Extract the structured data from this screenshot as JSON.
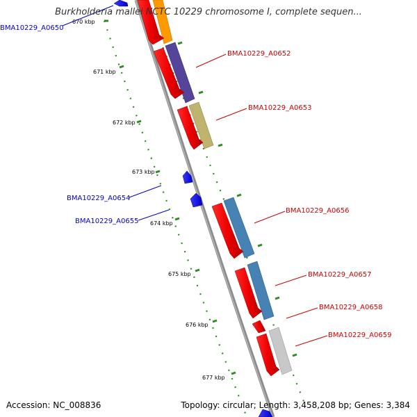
{
  "title": "Burkholderia mallei NCTC 10229 chromosome I, complete sequen...",
  "accession": "Accession: NC_008836",
  "summary": "Topology: circular; Length: 3,458,208 bp; Genes: 3,384",
  "ticks": [
    "670 kbp",
    "671 kbp",
    "672 kbp",
    "673 kbp",
    "674 kbp",
    "675 kbp",
    "676 kbp",
    "677 kbp"
  ],
  "genes": [
    {
      "label": "BMA10229_A0650",
      "color": "#0000cc"
    },
    {
      "label": "BMA10229_A0652",
      "color": "#cc0000"
    },
    {
      "label": "BMA10229_A0653",
      "color": "#cc0000"
    },
    {
      "label": "BMA10229_A0654",
      "color": "#0000cc"
    },
    {
      "label": "BMA10229_A0655",
      "color": "#0000cc"
    },
    {
      "label": "BMA10229_A0656",
      "color": "#cc0000"
    },
    {
      "label": "BMA10229_A0657",
      "color": "#cc0000"
    },
    {
      "label": "BMA10229_A0658",
      "color": "#cc0000"
    },
    {
      "label": "BMA10229_A0659",
      "color": "#cc0000"
    }
  ],
  "colors": {
    "backbone": "#8c8c8c",
    "forward_cds": "#ff0000",
    "reverse_cds": "#0000ff",
    "tick_green": "#2e8b22",
    "orange": "#ff9900",
    "purple": "#554499",
    "khaki": "#bfb36e",
    "steelblue": "#4682b4",
    "lightgray": "#c8c8c8"
  }
}
